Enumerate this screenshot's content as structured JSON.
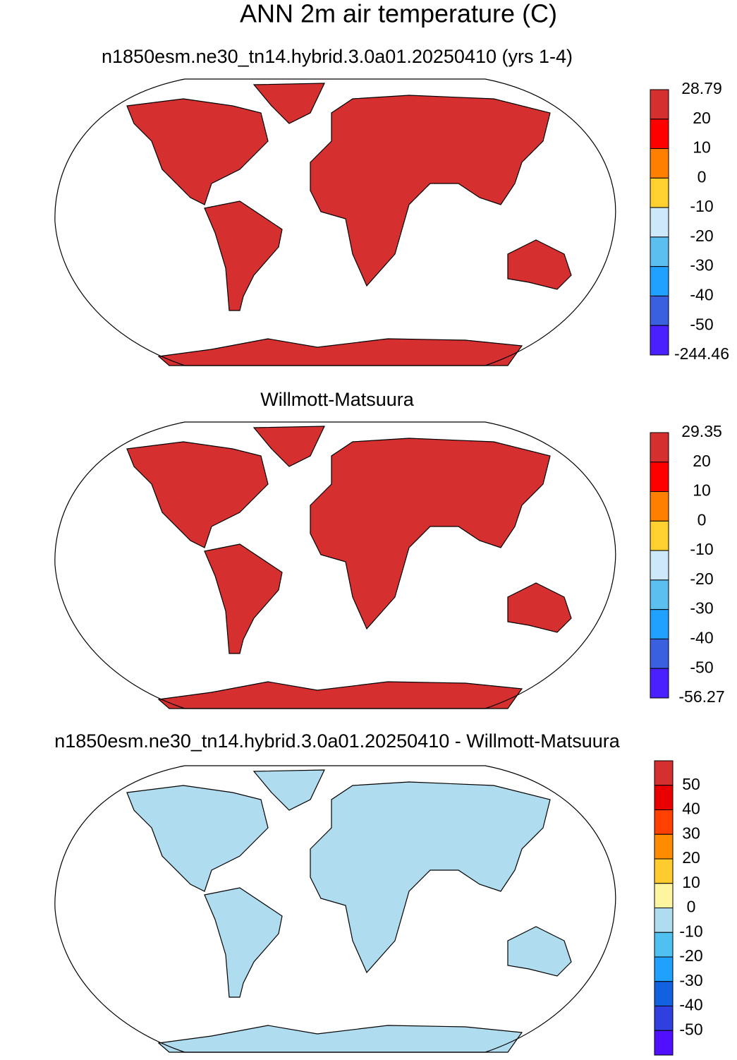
{
  "title": "ANN 2m air temperature (C)",
  "panels": [
    {
      "title": "n1850esm.ne30_tn14.hybrid.3.0a01.20250410 (yrs 1-4)",
      "colorbar": {
        "colors": [
          "#d62f2f",
          "#ff0000",
          "#ff8000",
          "#ffd030",
          "#cde8f8",
          "#5bc0f0",
          "#20a0ff",
          "#3a60e0",
          "#4a20ff"
        ],
        "labels": [
          "28.79",
          "20",
          "10",
          "0",
          "-10",
          "-20",
          "-30",
          "-40",
          "-50",
          "-244.46"
        ]
      }
    },
    {
      "title": "Willmott-Matsuura",
      "colorbar": {
        "colors": [
          "#d62f2f",
          "#ff0000",
          "#ff8000",
          "#ffd030",
          "#cde8f8",
          "#5bc0f0",
          "#20a0ff",
          "#3a60e0",
          "#4a20ff"
        ],
        "labels": [
          "29.35",
          "20",
          "10",
          "0",
          "-10",
          "-20",
          "-30",
          "-40",
          "-50",
          "-56.27"
        ]
      }
    },
    {
      "title": "n1850esm.ne30_tn14.hybrid.3.0a01.20250410 - Willmott-Matsuura",
      "colorbar": {
        "colors": [
          "#d62f2f",
          "#e80000",
          "#ff4000",
          "#ff8c00",
          "#ffcc30",
          "#fff5a0",
          "#b0dcf0",
          "#50c0f0",
          "#20a0ff",
          "#1060e0",
          "#3040e0",
          "#5010ff"
        ],
        "labels": [
          "50",
          "40",
          "30",
          "20",
          "10",
          "0",
          "-10",
          "-20",
          "-30",
          "-40",
          "-50"
        ]
      }
    }
  ]
}
